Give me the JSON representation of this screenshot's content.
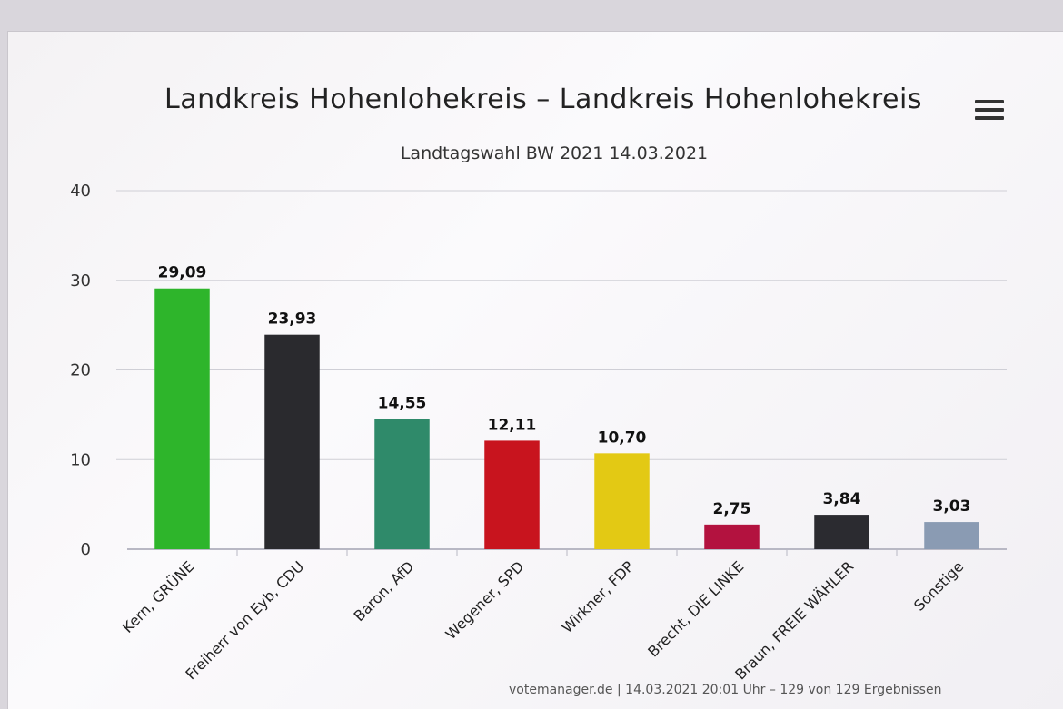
{
  "chart_data": {
    "type": "bar",
    "title": "Landkreis Hohenlohekreis – Landkreis Hohenlohekreis",
    "subtitle": "Landtagswahl BW 2021 14.03.2021",
    "categories": [
      "Kern, GRÜNE",
      "Freiherr von Eyb, CDU",
      "Baron, AfD",
      "Wegener, SPD",
      "Wirkner, FDP",
      "Brecht, DIE LINKE",
      "Braun, FREIE WÄHLER",
      "Sonstige"
    ],
    "values": [
      29.09,
      23.93,
      14.55,
      12.11,
      10.7,
      2.75,
      3.84,
      3.03
    ],
    "value_labels": [
      "29,09",
      "23,93",
      "14,55",
      "12,11",
      "10,70",
      "2,75",
      "3,84",
      "3,03"
    ],
    "colors": [
      "#2eb52b",
      "#2a2a2e",
      "#2f8a6a",
      "#c8141e",
      "#e3c914",
      "#b3123f",
      "#2b2b30",
      "#8a9bb3"
    ],
    "ylim": [
      0,
      40
    ],
    "yticks": [
      "0",
      "10",
      "20",
      "30",
      "40"
    ],
    "grid": true,
    "legend": "none"
  },
  "footer": "votemanager.de | 14.03.2021 20:01 Uhr – 129 von 129 Ergebnissen",
  "menu_icon": "hamburger-menu-icon"
}
